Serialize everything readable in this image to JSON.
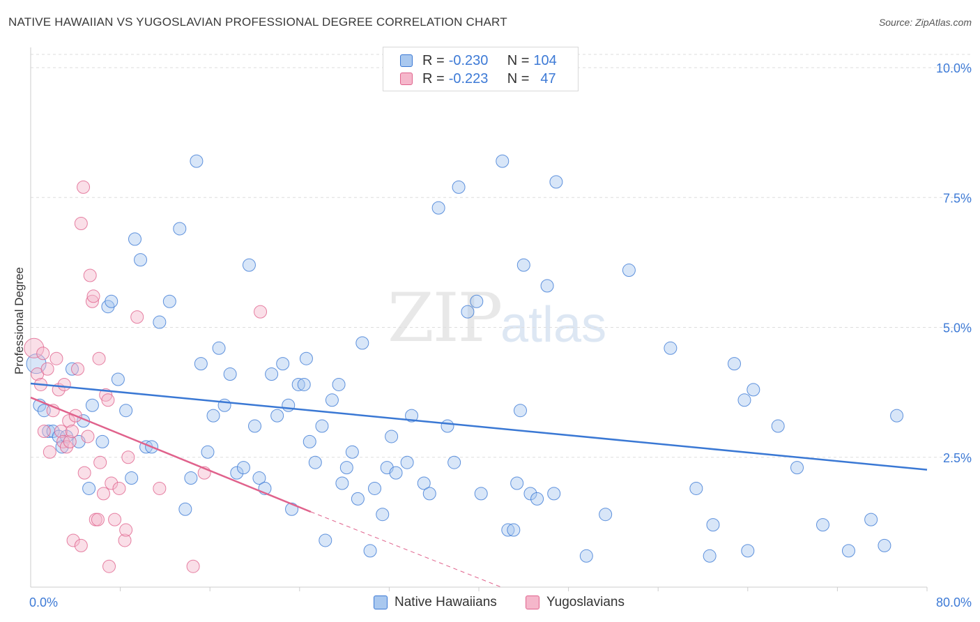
{
  "title": "NATIVE HAWAIIAN VS YUGOSLAVIAN PROFESSIONAL DEGREE CORRELATION CHART",
  "source": "Source: ZipAtlas.com",
  "watermark": {
    "zip": "ZIP",
    "atlas": "atlas"
  },
  "legend": {
    "rows": [
      {
        "r_label": "R = ",
        "r_value": "-0.230",
        "n_label": "N = ",
        "n_value": "104"
      },
      {
        "r_label": "R = ",
        "r_value": "-0.223",
        "n_label": "N = ",
        "n_value": "47"
      }
    ]
  },
  "colors": {
    "blue": "#3a78d4",
    "blue_fill": "#a9c8ef",
    "pink": "#e0628c",
    "pink_fill": "#f5b7cb",
    "grid": "#dddddd",
    "axis_text": "#3d7ad6"
  },
  "chart_data": {
    "type": "scatter",
    "title": "NATIVE HAWAIIAN VS YUGOSLAVIAN PROFESSIONAL DEGREE CORRELATION CHART",
    "xlabel": "",
    "ylabel": "Professional Degree",
    "xlim": [
      0,
      80
    ],
    "ylim": [
      0,
      10.5
    ],
    "x_tick_labels": [
      "0.0%",
      "80.0%"
    ],
    "y_ticks": [
      2.5,
      5.0,
      7.5,
      10.0
    ],
    "y_tick_labels": [
      "2.5%",
      "5.0%",
      "7.5%",
      "10.0%"
    ],
    "legend_position": "top-center",
    "series": [
      {
        "name": "Native Hawaiians",
        "color": "#3a78d4",
        "R": -0.23,
        "N": 104,
        "trend": {
          "x": [
            0,
            80
          ],
          "y": [
            3.92,
            2.26
          ]
        },
        "points": [
          [
            0.5,
            4.3
          ],
          [
            0.8,
            3.5
          ],
          [
            1.2,
            3.4
          ],
          [
            1.6,
            3.0
          ],
          [
            2.0,
            3.0
          ],
          [
            2.5,
            2.9
          ],
          [
            2.8,
            2.7
          ],
          [
            3.2,
            2.9
          ],
          [
            3.7,
            4.2
          ],
          [
            4.3,
            2.8
          ],
          [
            4.7,
            3.2
          ],
          [
            5.2,
            1.9
          ],
          [
            5.5,
            3.5
          ],
          [
            6.4,
            2.8
          ],
          [
            6.9,
            5.4
          ],
          [
            7.2,
            5.5
          ],
          [
            7.8,
            4.0
          ],
          [
            8.5,
            3.4
          ],
          [
            9.0,
            2.1
          ],
          [
            9.3,
            6.7
          ],
          [
            9.8,
            6.3
          ],
          [
            10.3,
            2.7
          ],
          [
            10.8,
            2.7
          ],
          [
            11.5,
            5.1
          ],
          [
            12.4,
            5.5
          ],
          [
            13.3,
            6.9
          ],
          [
            13.8,
            1.5
          ],
          [
            14.3,
            2.1
          ],
          [
            14.8,
            8.2
          ],
          [
            15.2,
            4.3
          ],
          [
            15.8,
            2.6
          ],
          [
            16.3,
            3.3
          ],
          [
            16.8,
            4.6
          ],
          [
            17.3,
            3.5
          ],
          [
            17.8,
            4.1
          ],
          [
            18.4,
            2.2
          ],
          [
            19.0,
            2.3
          ],
          [
            19.5,
            6.2
          ],
          [
            20.0,
            3.1
          ],
          [
            20.4,
            2.1
          ],
          [
            20.9,
            1.9
          ],
          [
            21.5,
            4.1
          ],
          [
            22.0,
            3.3
          ],
          [
            22.5,
            4.3
          ],
          [
            23.0,
            3.5
          ],
          [
            23.3,
            1.5
          ],
          [
            23.9,
            3.9
          ],
          [
            24.4,
            3.9
          ],
          [
            24.6,
            4.4
          ],
          [
            24.9,
            2.8
          ],
          [
            25.4,
            2.4
          ],
          [
            26.0,
            3.1
          ],
          [
            26.3,
            0.9
          ],
          [
            26.9,
            3.6
          ],
          [
            27.5,
            3.9
          ],
          [
            27.8,
            2.0
          ],
          [
            28.2,
            2.3
          ],
          [
            28.7,
            2.6
          ],
          [
            29.2,
            1.7
          ],
          [
            29.6,
            4.7
          ],
          [
            30.3,
            0.7
          ],
          [
            30.7,
            1.9
          ],
          [
            31.4,
            1.4
          ],
          [
            31.8,
            2.3
          ],
          [
            32.2,
            2.9
          ],
          [
            32.6,
            2.2
          ],
          [
            33.6,
            2.4
          ],
          [
            34.0,
            3.3
          ],
          [
            35.1,
            2.0
          ],
          [
            35.6,
            1.8
          ],
          [
            36.4,
            7.3
          ],
          [
            37.2,
            3.1
          ],
          [
            37.8,
            2.4
          ],
          [
            38.2,
            7.7
          ],
          [
            39.0,
            5.3
          ],
          [
            39.8,
            5.5
          ],
          [
            40.2,
            1.8
          ],
          [
            42.1,
            8.2
          ],
          [
            42.6,
            1.1
          ],
          [
            43.1,
            1.1
          ],
          [
            43.4,
            2.0
          ],
          [
            43.7,
            3.4
          ],
          [
            44.0,
            6.2
          ],
          [
            44.6,
            1.8
          ],
          [
            45.2,
            1.7
          ],
          [
            46.1,
            5.8
          ],
          [
            46.7,
            1.8
          ],
          [
            46.9,
            7.8
          ],
          [
            49.6,
            0.6
          ],
          [
            51.3,
            1.4
          ],
          [
            53.4,
            6.1
          ],
          [
            57.1,
            4.6
          ],
          [
            59.4,
            1.9
          ],
          [
            60.6,
            0.6
          ],
          [
            60.9,
            1.2
          ],
          [
            62.8,
            4.3
          ],
          [
            63.7,
            3.6
          ],
          [
            64.0,
            0.7
          ],
          [
            64.5,
            3.8
          ],
          [
            66.7,
            3.1
          ],
          [
            68.4,
            2.3
          ],
          [
            70.7,
            1.2
          ],
          [
            73.0,
            0.7
          ],
          [
            75.0,
            1.3
          ],
          [
            76.2,
            0.8
          ],
          [
            77.3,
            3.3
          ]
        ]
      },
      {
        "name": "Yugoslavians",
        "color": "#e0628c",
        "R": -0.223,
        "N": 47,
        "trend": {
          "x": [
            0,
            25
          ],
          "y": [
            3.65,
            1.45
          ],
          "dashed_to": [
            42,
            0.0
          ]
        },
        "points": [
          [
            0.3,
            4.6
          ],
          [
            0.6,
            4.1
          ],
          [
            0.9,
            3.9
          ],
          [
            1.2,
            3.0
          ],
          [
            1.5,
            4.2
          ],
          [
            1.7,
            2.6
          ],
          [
            2.0,
            3.4
          ],
          [
            2.3,
            4.4
          ],
          [
            2.5,
            3.8
          ],
          [
            2.7,
            3.0
          ],
          [
            2.9,
            2.8
          ],
          [
            3.0,
            3.9
          ],
          [
            3.2,
            2.7
          ],
          [
            3.4,
            3.2
          ],
          [
            3.5,
            2.8
          ],
          [
            3.7,
            3.0
          ],
          [
            3.8,
            0.9
          ],
          [
            4.0,
            3.3
          ],
          [
            4.2,
            4.2
          ],
          [
            4.5,
            0.8
          ],
          [
            4.7,
            7.7
          ],
          [
            4.5,
            7.0
          ],
          [
            4.8,
            2.2
          ],
          [
            5.1,
            2.9
          ],
          [
            5.3,
            6.0
          ],
          [
            5.5,
            5.5
          ],
          [
            5.8,
            1.3
          ],
          [
            6.0,
            1.3
          ],
          [
            6.1,
            4.4
          ],
          [
            6.2,
            2.4
          ],
          [
            6.5,
            1.8
          ],
          [
            6.7,
            3.7
          ],
          [
            6.9,
            3.6
          ],
          [
            7.0,
            0.4
          ],
          [
            7.2,
            2.0
          ],
          [
            7.5,
            1.3
          ],
          [
            7.9,
            1.9
          ],
          [
            8.4,
            0.9
          ],
          [
            8.5,
            1.1
          ],
          [
            8.7,
            2.5
          ],
          [
            9.5,
            5.2
          ],
          [
            11.5,
            1.9
          ],
          [
            14.5,
            0.4
          ],
          [
            15.5,
            2.2
          ],
          [
            20.5,
            5.3
          ],
          [
            5.6,
            5.6
          ],
          [
            1.1,
            4.5
          ]
        ]
      }
    ]
  }
}
